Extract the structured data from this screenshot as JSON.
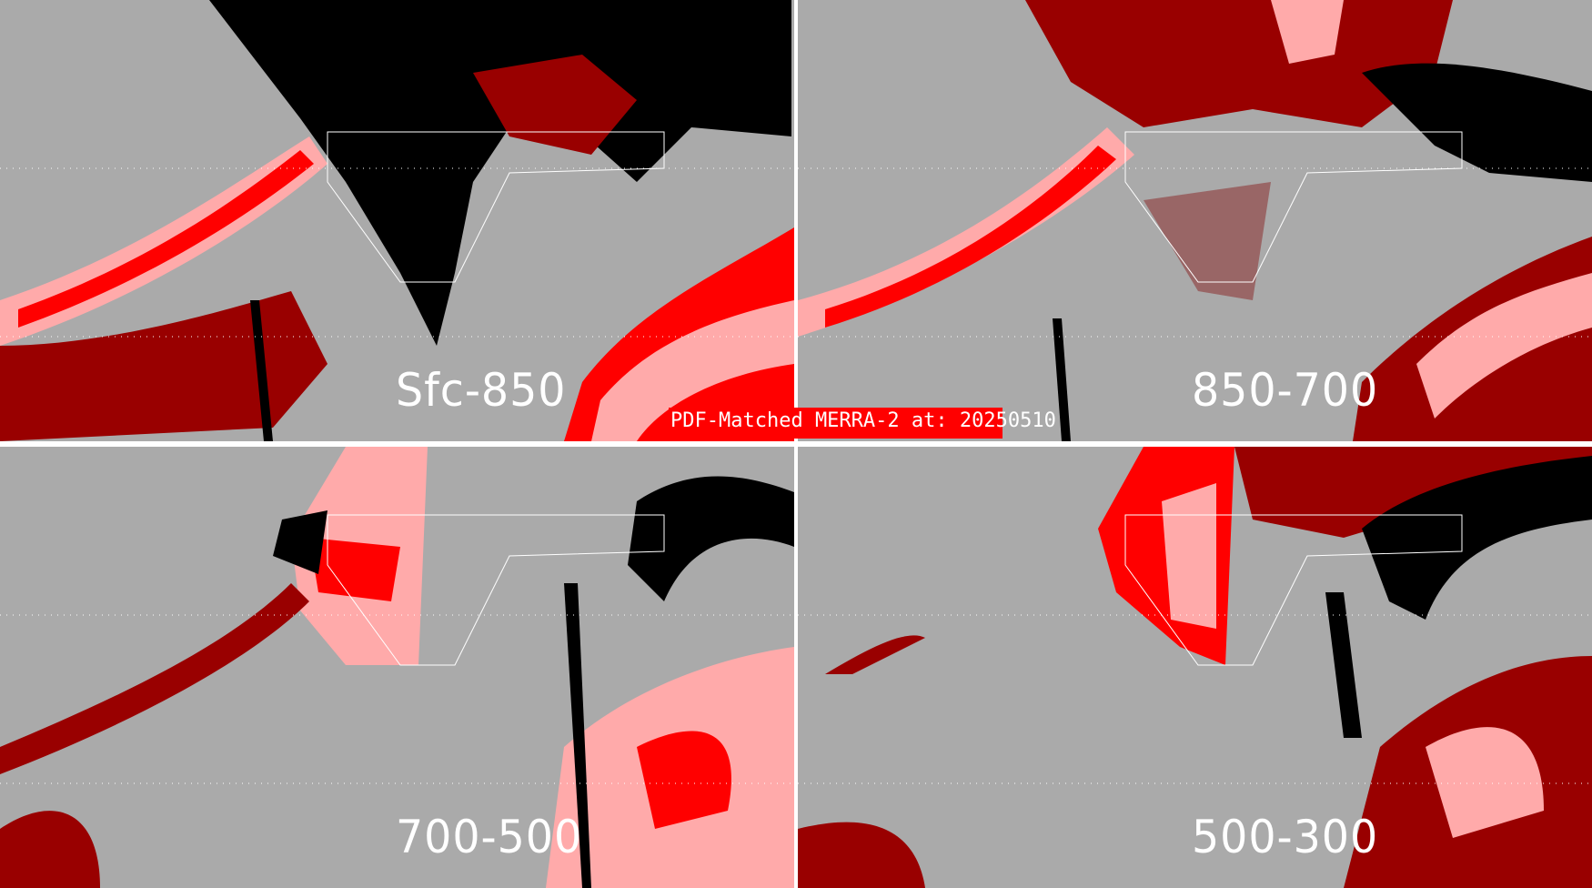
{
  "title": "PDF-Matched MERRA-2 at: 20250510",
  "panels": [
    {
      "label": "Sfc-850"
    },
    {
      "label": "850-700"
    },
    {
      "label": "700-500"
    },
    {
      "label": "500-300"
    }
  ],
  "colors": {
    "background": "#aaaaaa",
    "black": "#000000",
    "dark_red": "#990000",
    "red": "#ff0000",
    "pink": "#ffaaaa",
    "mauve": "#996666",
    "borders": "#ffffff"
  }
}
